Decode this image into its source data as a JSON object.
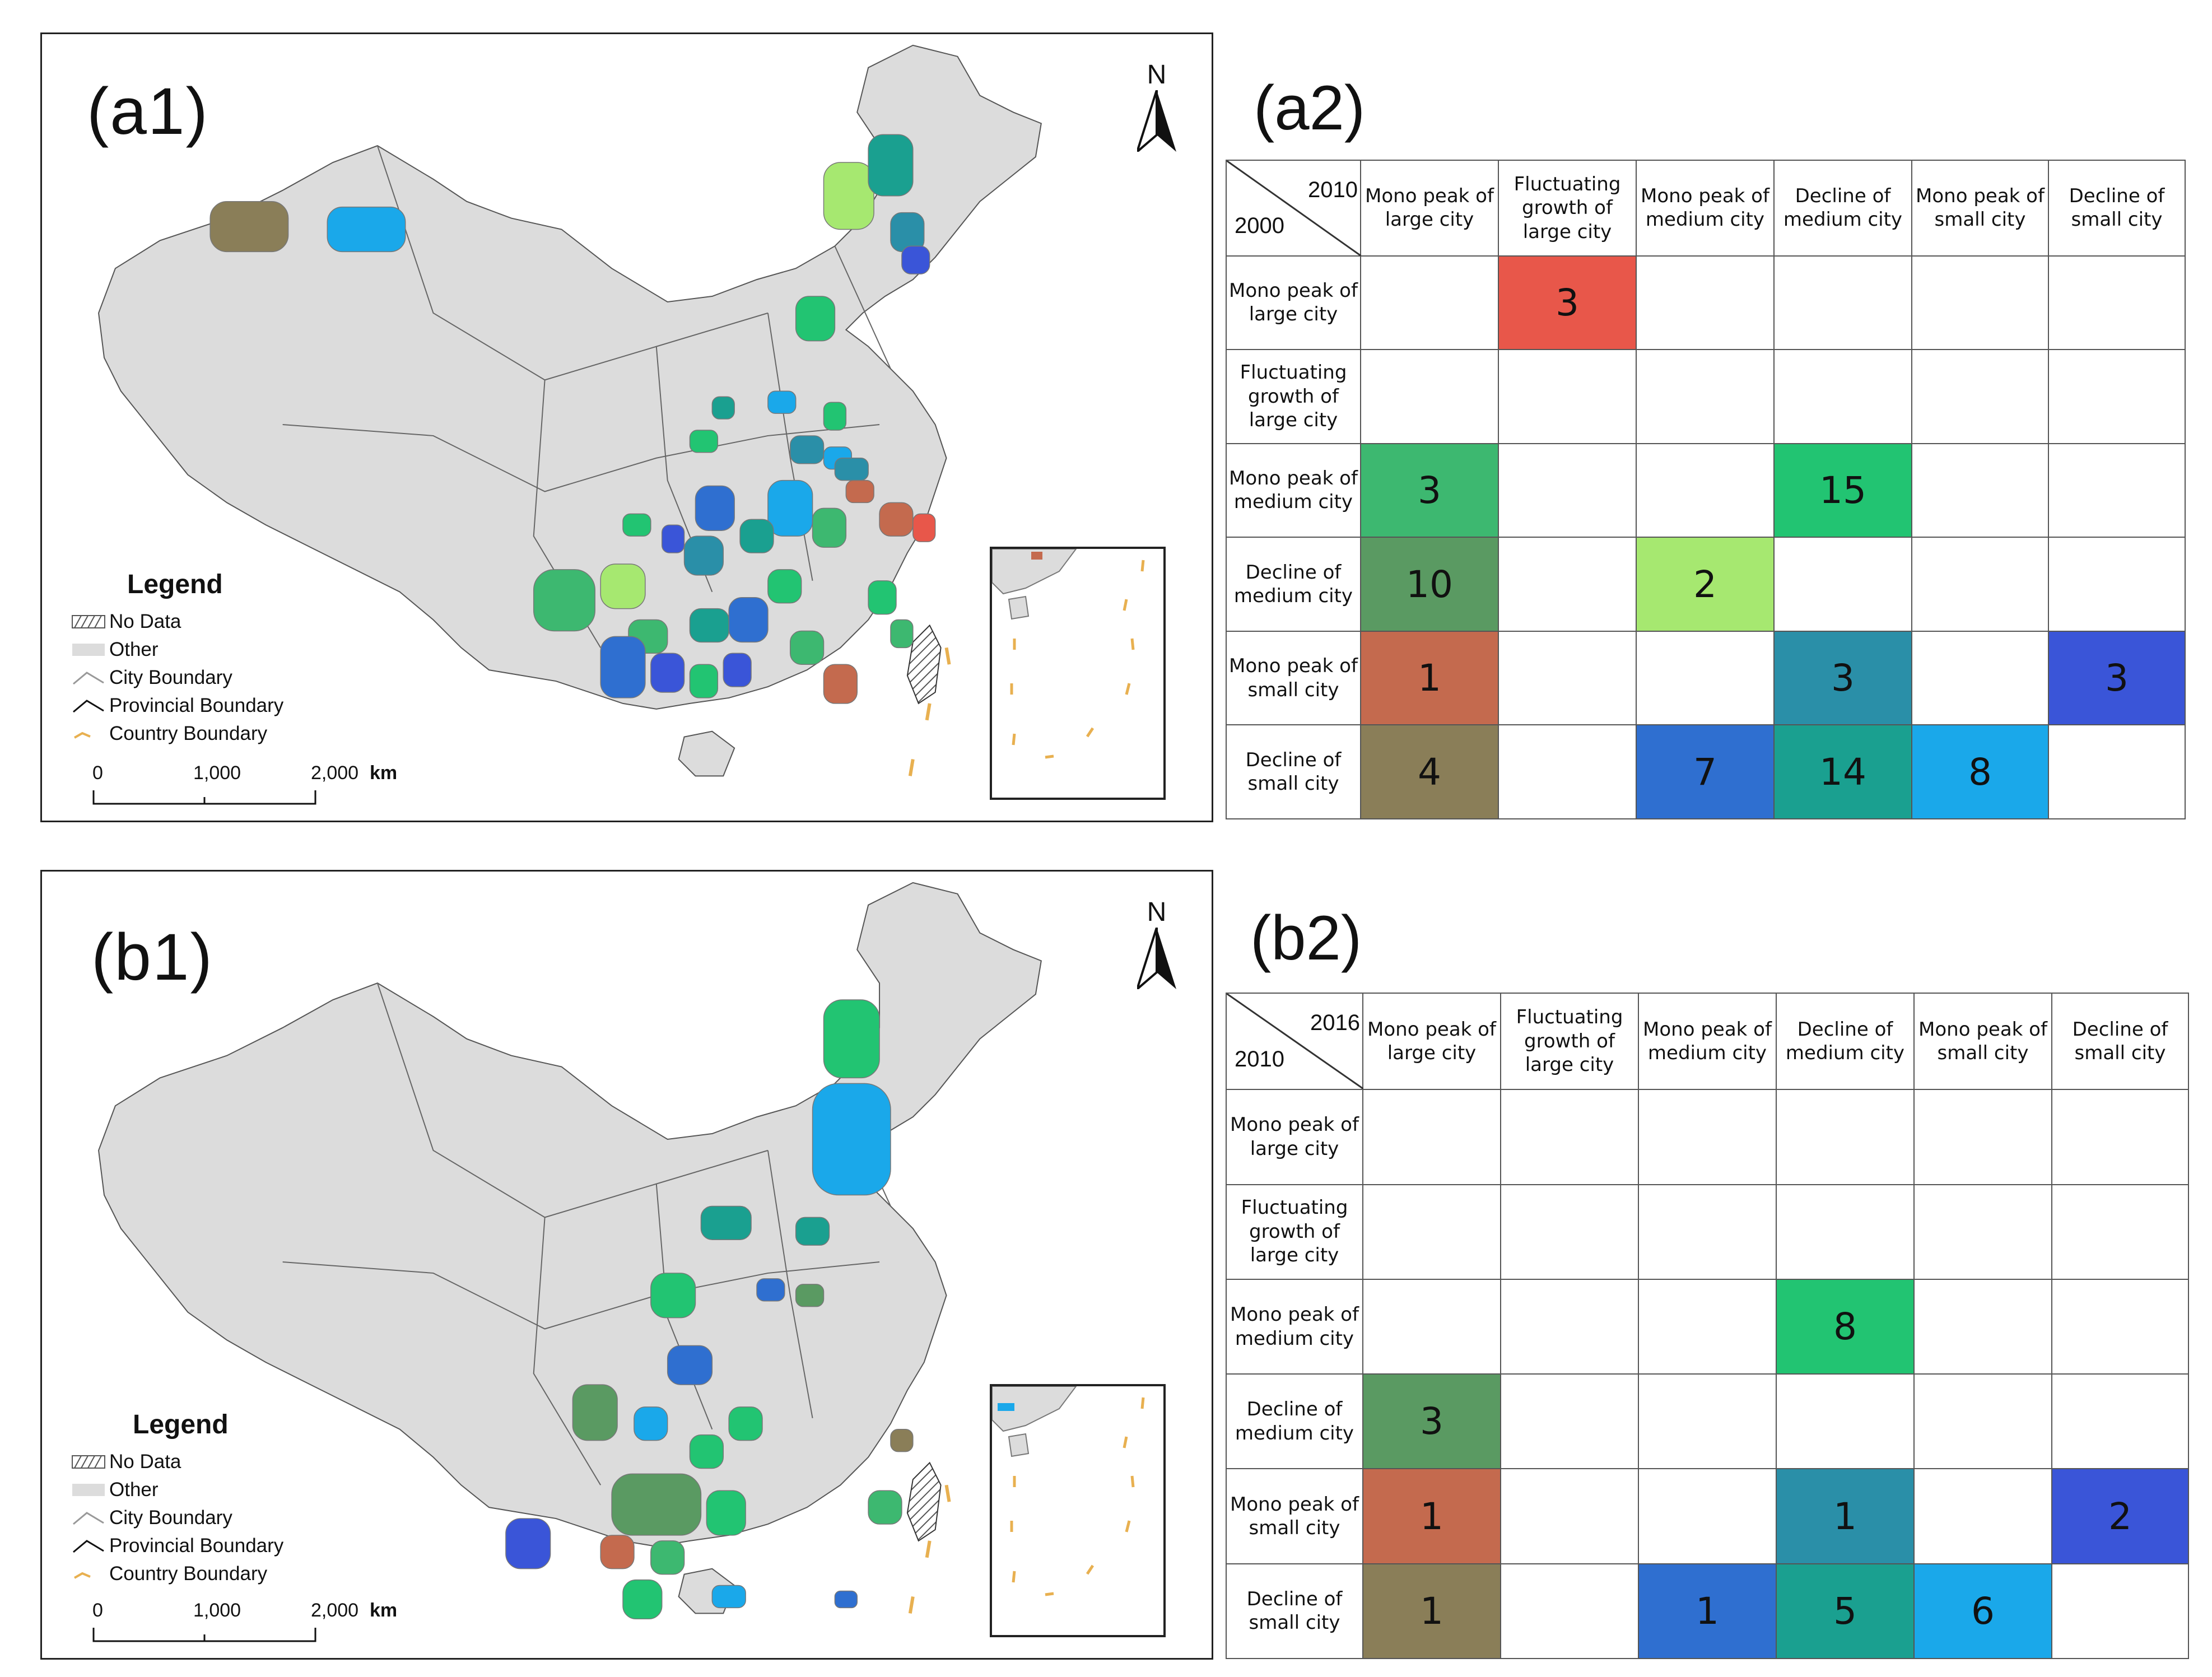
{
  "panels": {
    "a1": "(a1)",
    "a2": "(a2)",
    "b1": "(b1)",
    "b2": "(b2)"
  },
  "map": {
    "north_label": "N",
    "legend": {
      "title": "Legend",
      "items": [
        "No Data",
        "Other",
        "City Boundary",
        "Provincial Boundary",
        "Country Boundary"
      ]
    },
    "scale": {
      "ticks": [
        "0",
        "1,000",
        "2,000"
      ],
      "unit": "km"
    }
  },
  "categories": [
    "Mono peak of large city",
    "Fluctuating growth of large city",
    "Mono peak of medium city",
    "Decline of medium city",
    "Mono peak of small city",
    "Decline of small city"
  ],
  "category_colors": {
    "a2_0_1": "#e8574a",
    "a2_2_0": "#3db870",
    "a2_2_3": "#22c472",
    "a2_3_0": "#5a9a62",
    "a2_3_2": "#a6e870",
    "a2_4_0": "#c46a4e",
    "a2_4_3": "#2a8fa8",
    "a2_4_5": "#3a55d8",
    "a2_5_0": "#8a7e58",
    "a2_5_2": "#2f6fd0",
    "a2_5_3": "#1aa090",
    "a2_5_4": "#1aa8ea",
    "b2_2_3": "#22c472",
    "b2_3_0": "#5a9a62",
    "b2_4_0": "#c46a4e",
    "b2_4_3": "#2a8fa8",
    "b2_4_5": "#3a55d8",
    "b2_5_0": "#8a7e58",
    "b2_5_2": "#2f6fd0",
    "b2_5_3": "#1aa090",
    "b2_5_4": "#1aa8ea",
    "land": "#dcdcdc",
    "no_data_hatch": "#666666",
    "country_boundary": "#e8b050"
  },
  "table_a2": {
    "col_year": "2010",
    "row_year": "2000",
    "columns": [
      "Mono peak of large city",
      "Fluctuating growth of large city",
      "Mono peak of medium city",
      "Decline of medium city",
      "Mono peak of small city",
      "Decline of small city"
    ],
    "rows": [
      "Mono peak of large city",
      "Fluctuating growth of large city",
      "Mono peak of medium city",
      "Decline of medium city",
      "Mono peak of small city",
      "Decline of small city"
    ],
    "cells": [
      [
        "",
        "3",
        "",
        "",
        "",
        ""
      ],
      [
        "",
        "",
        "",
        "",
        "",
        ""
      ],
      [
        "3",
        "",
        "",
        "15",
        "",
        ""
      ],
      [
        "10",
        "",
        "2",
        "",
        "",
        ""
      ],
      [
        "1",
        "",
        "",
        "3",
        "",
        "3"
      ],
      [
        "4",
        "",
        "7",
        "14",
        "8",
        ""
      ]
    ]
  },
  "table_b2": {
    "col_year": "2016",
    "row_year": "2010",
    "columns": [
      "Mono peak of large city",
      "Fluctuating growth of large city",
      "Mono peak of medium city",
      "Decline of medium city",
      "Mono peak of small city",
      "Decline of small city"
    ],
    "rows": [
      "Mono peak of large city",
      "Fluctuating growth of large city",
      "Mono peak of medium city",
      "Decline of medium city",
      "Mono peak of small city",
      "Decline of small city"
    ],
    "cells": [
      [
        "",
        "",
        "",
        "",
        "",
        ""
      ],
      [
        "",
        "",
        "",
        "",
        "",
        ""
      ],
      [
        "",
        "",
        "",
        "8",
        "",
        ""
      ],
      [
        "3",
        "",
        "",
        "",
        "",
        ""
      ],
      [
        "1",
        "",
        "",
        "1",
        "",
        "2"
      ],
      [
        "1",
        "",
        "1",
        "5",
        "6",
        ""
      ]
    ]
  }
}
